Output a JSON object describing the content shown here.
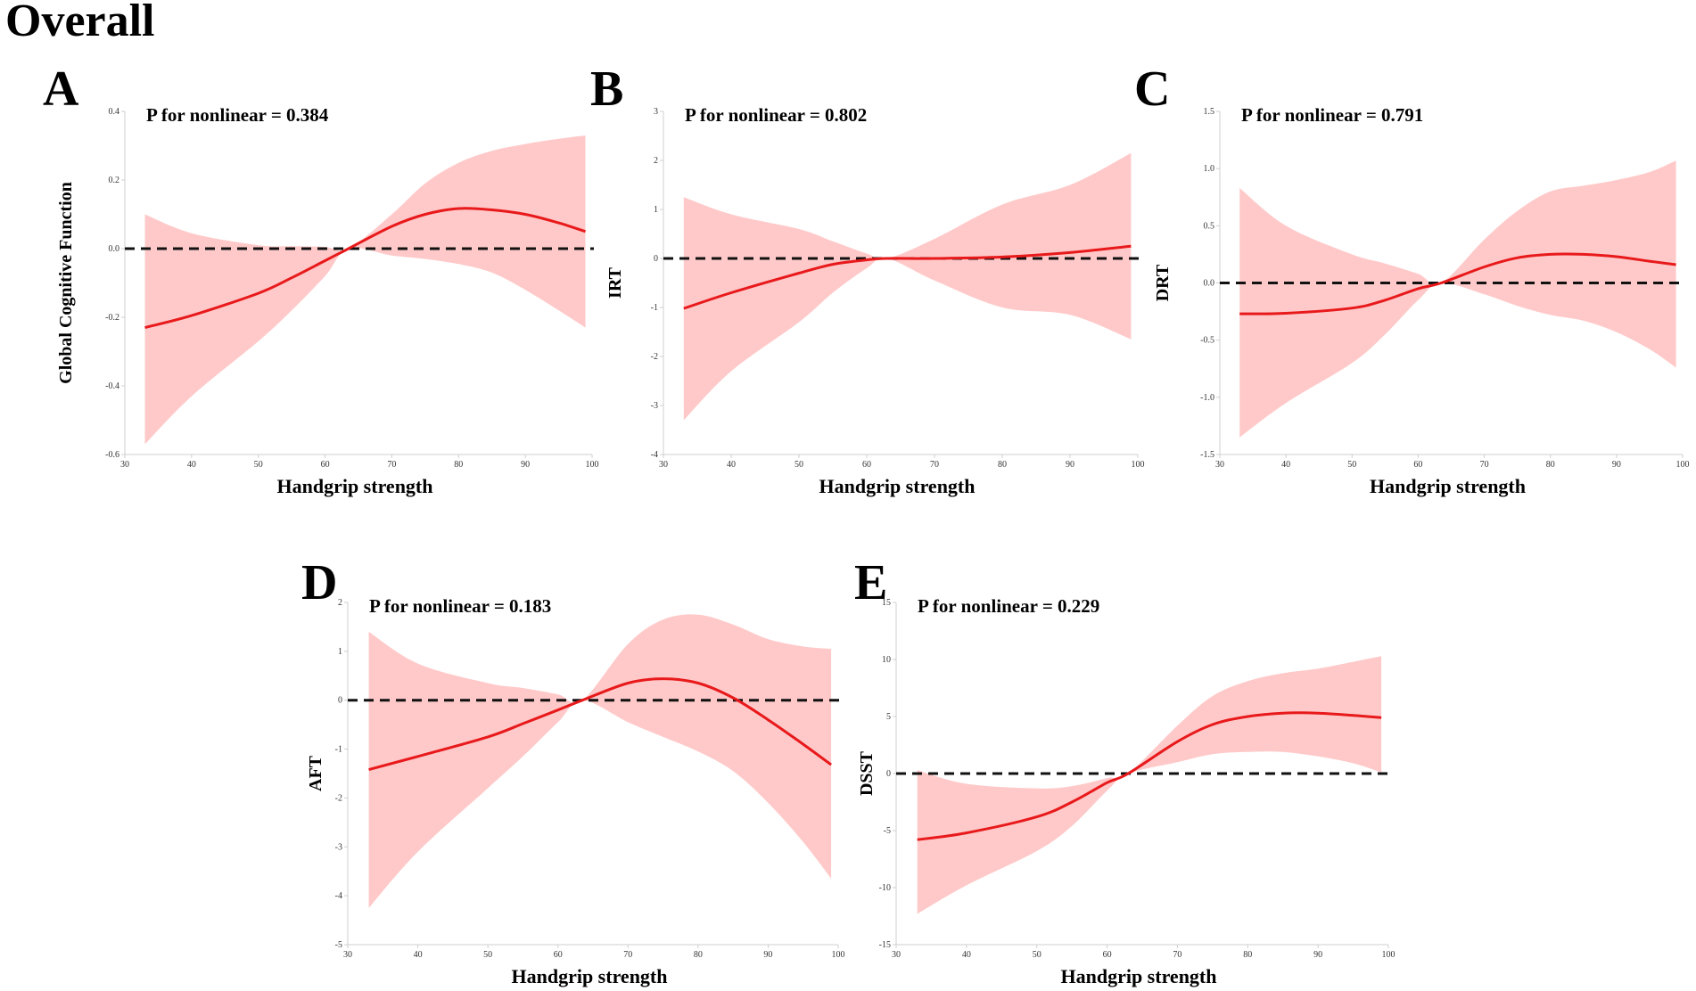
{
  "figure_title": "Overall",
  "chart_data": [
    {
      "panel": "A",
      "type": "line",
      "annotation": "P for nonlinear  = 0.384",
      "xlabel": "Handgrip strength",
      "ylabel": "Global Cognitive Function",
      "xlim": [
        30,
        100
      ],
      "ylim": [
        -0.6,
        0.4
      ],
      "xticks": [
        30,
        40,
        50,
        60,
        70,
        80,
        90,
        100
      ],
      "yticks": [
        -0.6,
        -0.4,
        -0.2,
        0.0,
        0.2,
        0.4
      ],
      "ytick_labels": [
        "-0.6",
        "-0.4",
        "-0.2",
        "0.0",
        "0.2",
        "0.4"
      ],
      "reference_line": 0,
      "series": [
        {
          "name": "estimate",
          "x": [
            33,
            40,
            50,
            55,
            60,
            63.5,
            70,
            75,
            80,
            85,
            90,
            95,
            99
          ],
          "values": [
            -0.23,
            -0.195,
            -0.13,
            -0.085,
            -0.035,
            0.0,
            0.065,
            0.1,
            0.117,
            0.113,
            0.1,
            0.075,
            0.05
          ]
        },
        {
          "name": "upper 95% CI",
          "x": [
            33,
            40,
            50,
            55,
            60,
            63.5,
            70,
            75,
            80,
            85,
            90,
            95,
            99
          ],
          "values": [
            0.1,
            0.045,
            0.01,
            0.007,
            0.005,
            0.0,
            0.1,
            0.19,
            0.25,
            0.285,
            0.305,
            0.32,
            0.33
          ]
        },
        {
          "name": "lower 95% CI",
          "x": [
            33,
            40,
            50,
            55,
            60,
            63.5,
            70,
            75,
            80,
            85,
            90,
            95,
            99
          ],
          "values": [
            -0.57,
            -0.43,
            -0.27,
            -0.18,
            -0.08,
            0.0,
            -0.02,
            -0.03,
            -0.045,
            -0.07,
            -0.12,
            -0.18,
            -0.23
          ]
        }
      ]
    },
    {
      "panel": "B",
      "type": "line",
      "annotation": "P for nonlinear  = 0.802",
      "xlabel": "Handgrip strength",
      "ylabel": "IRT",
      "xlim": [
        30,
        100
      ],
      "ylim": [
        -4,
        3
      ],
      "xticks": [
        30,
        40,
        50,
        60,
        70,
        80,
        90,
        100
      ],
      "yticks": [
        -4,
        -3,
        -2,
        -1,
        0,
        1,
        2,
        3
      ],
      "ytick_labels": [
        "-4",
        "-3",
        "-2",
        "-1",
        "0",
        "1",
        "2",
        "3"
      ],
      "reference_line": 0,
      "series": [
        {
          "name": "estimate",
          "x": [
            33,
            40,
            50,
            55,
            60,
            63,
            70,
            80,
            90,
            99
          ],
          "values": [
            -1.02,
            -0.7,
            -0.3,
            -0.12,
            -0.03,
            0.0,
            0.0,
            0.03,
            0.12,
            0.25
          ]
        },
        {
          "name": "upper 95% CI",
          "x": [
            33,
            40,
            50,
            55,
            60,
            63,
            70,
            80,
            90,
            99
          ],
          "values": [
            1.25,
            0.9,
            0.6,
            0.35,
            0.1,
            0.0,
            0.4,
            1.1,
            1.5,
            2.15
          ]
        },
        {
          "name": "lower 95% CI",
          "x": [
            33,
            40,
            50,
            55,
            60,
            63,
            70,
            80,
            90,
            99
          ],
          "values": [
            -3.3,
            -2.3,
            -1.3,
            -0.7,
            -0.2,
            0.0,
            -0.45,
            -1.0,
            -1.15,
            -1.65
          ]
        }
      ]
    },
    {
      "panel": "C",
      "type": "line",
      "annotation": "P for nonlinear  = 0.791",
      "xlabel": "Handgrip strength",
      "ylabel": "DRT",
      "xlim": [
        30,
        100
      ],
      "ylim": [
        -1.5,
        1.5
      ],
      "xticks": [
        30,
        40,
        50,
        60,
        70,
        80,
        90,
        100
      ],
      "yticks": [
        -1.5,
        -1.0,
        -0.5,
        0.0,
        0.5,
        1.0,
        1.5
      ],
      "ytick_labels": [
        "-1.5",
        "-1.0",
        "-0.5",
        "0.0",
        "0.5",
        "1.0",
        "1.5"
      ],
      "reference_line": 0,
      "series": [
        {
          "name": "estimate",
          "x": [
            33,
            40,
            50,
            55,
            60,
            63.5,
            70,
            75,
            80,
            85,
            90,
            95,
            99
          ],
          "values": [
            -0.27,
            -0.265,
            -0.22,
            -0.15,
            -0.05,
            0.0,
            0.14,
            0.22,
            0.25,
            0.25,
            0.23,
            0.19,
            0.16
          ]
        },
        {
          "name": "upper 95% CI",
          "x": [
            33,
            40,
            50,
            55,
            60,
            63.5,
            70,
            75,
            80,
            85,
            90,
            95,
            99
          ],
          "values": [
            0.83,
            0.5,
            0.25,
            0.17,
            0.08,
            0.0,
            0.38,
            0.63,
            0.8,
            0.85,
            0.9,
            0.97,
            1.07
          ]
        },
        {
          "name": "lower 95% CI",
          "x": [
            33,
            40,
            50,
            55,
            60,
            63.5,
            70,
            75,
            80,
            85,
            90,
            95,
            99
          ],
          "values": [
            -1.35,
            -1.05,
            -0.7,
            -0.45,
            -0.15,
            0.0,
            -0.1,
            -0.2,
            -0.28,
            -0.33,
            -0.43,
            -0.58,
            -0.74
          ]
        }
      ]
    },
    {
      "panel": "D",
      "type": "line",
      "annotation": "P for nonlinear  = 0.183",
      "xlabel": "Handgrip strength",
      "ylabel": "AFT",
      "xlim": [
        30,
        100
      ],
      "ylim": [
        -5,
        2
      ],
      "xticks": [
        30,
        40,
        50,
        60,
        70,
        80,
        90,
        100
      ],
      "yticks": [
        -5,
        -4,
        -3,
        -2,
        -1,
        0,
        1,
        2
      ],
      "ytick_labels": [
        "-5",
        "-4",
        "-3",
        "-2",
        "-1",
        "0",
        "1",
        "2"
      ],
      "reference_line": 0,
      "series": [
        {
          "name": "estimate",
          "x": [
            33,
            40,
            50,
            55,
            60,
            63.5,
            70,
            75,
            80,
            85,
            90,
            95,
            99
          ],
          "values": [
            -1.42,
            -1.15,
            -0.75,
            -0.48,
            -0.2,
            0.0,
            0.35,
            0.44,
            0.35,
            0.05,
            -0.4,
            -0.9,
            -1.32
          ]
        },
        {
          "name": "upper 95% CI",
          "x": [
            33,
            40,
            50,
            55,
            60,
            63.5,
            70,
            75,
            80,
            85,
            90,
            95,
            99
          ],
          "values": [
            1.4,
            0.75,
            0.35,
            0.25,
            0.12,
            0.0,
            1.15,
            1.65,
            1.75,
            1.55,
            1.25,
            1.1,
            1.05
          ]
        },
        {
          "name": "lower 95% CI",
          "x": [
            33,
            40,
            50,
            55,
            60,
            63.5,
            70,
            75,
            80,
            85,
            90,
            95,
            99
          ],
          "values": [
            -4.25,
            -3.1,
            -1.8,
            -1.15,
            -0.45,
            0.0,
            -0.45,
            -0.75,
            -1.05,
            -1.45,
            -2.1,
            -2.9,
            -3.65
          ]
        }
      ]
    },
    {
      "panel": "E",
      "type": "line",
      "annotation": "P for nonlinear  = 0.229",
      "xlabel": "Handgrip strength",
      "ylabel": "DSST",
      "xlim": [
        30,
        100
      ],
      "ylim": [
        -15,
        15
      ],
      "xticks": [
        30,
        40,
        50,
        60,
        70,
        80,
        90,
        100
      ],
      "yticks": [
        -15,
        -10,
        -5,
        0,
        5,
        10,
        15
      ],
      "ytick_labels": [
        "-15",
        "-10",
        "-5",
        "0",
        "5",
        "10",
        "15"
      ],
      "reference_line": 0,
      "series": [
        {
          "name": "estimate",
          "x": [
            33,
            40,
            50,
            55,
            60,
            63,
            70,
            75,
            80,
            85,
            90,
            95,
            99
          ],
          "values": [
            -5.8,
            -5.2,
            -3.8,
            -2.5,
            -0.8,
            0.0,
            2.8,
            4.3,
            5.0,
            5.3,
            5.3,
            5.1,
            4.9
          ]
        },
        {
          "name": "upper 95% CI",
          "x": [
            33,
            40,
            50,
            55,
            60,
            63,
            70,
            75,
            80,
            85,
            90,
            95,
            99
          ],
          "values": [
            0.3,
            -0.9,
            -1.3,
            -1.1,
            -0.4,
            0.0,
            4.2,
            6.8,
            8.1,
            8.8,
            9.2,
            9.8,
            10.3
          ]
        },
        {
          "name": "lower 95% CI",
          "x": [
            33,
            40,
            50,
            55,
            60,
            63,
            70,
            75,
            80,
            85,
            90,
            95,
            99
          ],
          "values": [
            -12.3,
            -9.8,
            -6.8,
            -4.6,
            -1.5,
            0.0,
            1.0,
            1.7,
            1.9,
            1.9,
            1.5,
            0.9,
            0.1
          ]
        }
      ]
    }
  ]
}
